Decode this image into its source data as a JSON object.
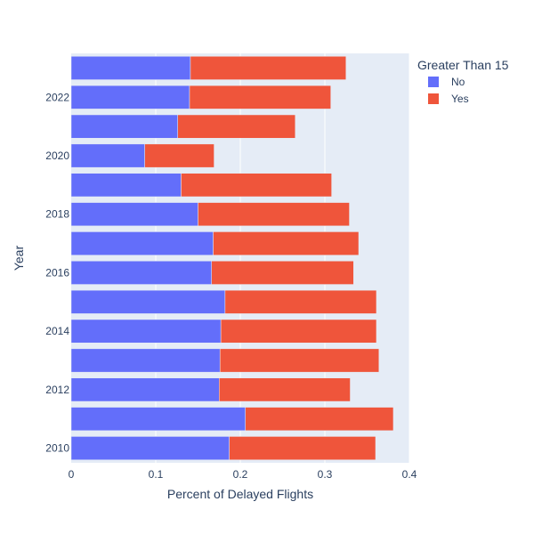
{
  "chart_data": {
    "type": "bar",
    "orientation": "horizontal",
    "barmode": "stack",
    "xlabel": "Percent of Delayed Flights",
    "ylabel": "Year",
    "xlim": [
      0,
      0.4
    ],
    "x_ticks": [
      "0",
      "0.1",
      "0.2",
      "0.3",
      "0.4"
    ],
    "y_tick_labels": [
      "2010",
      "2012",
      "2014",
      "2016",
      "2018",
      "2020",
      "2022"
    ],
    "grid": true,
    "legend": {
      "title": "Greater Than 15",
      "placement": "top-right"
    },
    "categories": [
      2010,
      2011,
      2012,
      2013,
      2014,
      2015,
      2016,
      2017,
      2018,
      2019,
      2020,
      2021,
      2022,
      2023
    ],
    "series": [
      {
        "name": "No",
        "color": "#636efa",
        "values": [
          0.187,
          0.206,
          0.175,
          0.176,
          0.177,
          0.182,
          0.166,
          0.168,
          0.15,
          0.13,
          0.087,
          0.126,
          0.14,
          0.141
        ]
      },
      {
        "name": "Yes",
        "color": "#ef553b",
        "values": [
          0.173,
          0.175,
          0.155,
          0.188,
          0.184,
          0.179,
          0.168,
          0.172,
          0.179,
          0.178,
          0.082,
          0.139,
          0.167,
          0.184
        ]
      }
    ]
  }
}
